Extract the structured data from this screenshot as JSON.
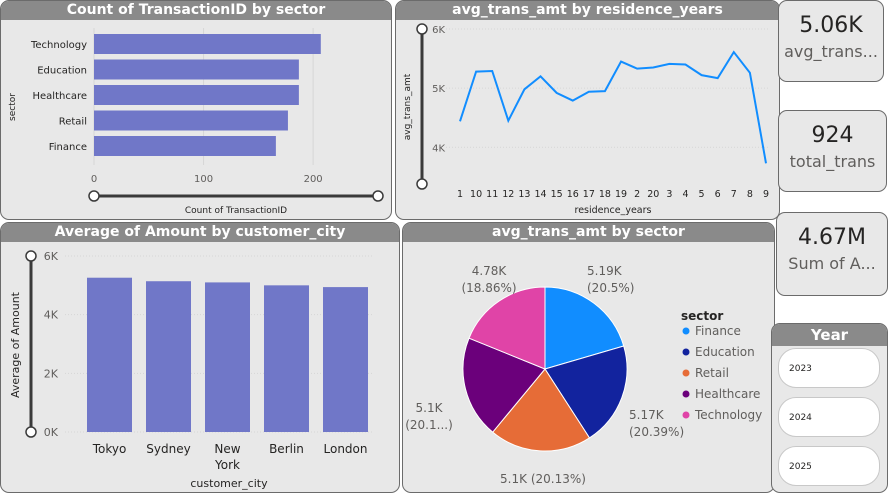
{
  "colors": {
    "bar": "#7077c8",
    "line": "#118dff",
    "finance": "#118dff",
    "education": "#12239e",
    "retail": "#e66c37",
    "healthcare": "#6b007b",
    "technology": "#e044a7"
  },
  "panels": {
    "sector_count": {
      "title": "Count of TransactionID by sector"
    },
    "residence": {
      "title": "avg_trans_amt by residence_years"
    },
    "city": {
      "title": "Average of Amount by customer_city"
    },
    "pie": {
      "title": "avg_trans_amt by sector"
    }
  },
  "kpis": [
    {
      "value": "5.06K",
      "label": "avg_trans..."
    },
    {
      "value": "924",
      "label": "total_trans"
    },
    {
      "value": "4.67M",
      "label": "Sum of A..."
    }
  ],
  "year_slicer": {
    "title": "Year",
    "items": [
      "2023",
      "2024",
      "2025"
    ]
  },
  "chart_data": [
    {
      "type": "bar",
      "orientation": "horizontal",
      "title": "Count of TransactionID by sector",
      "ylabel": "sector",
      "xlabel": "Count of TransactionID",
      "categories": [
        "Technology",
        "Education",
        "Healthcare",
        "Retail",
        "Finance"
      ],
      "values": [
        207,
        187,
        187,
        177,
        166
      ],
      "xticks": [
        "0",
        "100",
        "200"
      ],
      "xlim": [
        0,
        230
      ]
    },
    {
      "type": "line",
      "title": "avg_trans_amt by residence_years",
      "xlabel": "residence_years",
      "ylabel": "avg_trans_amt",
      "x": [
        "1",
        "10",
        "11",
        "12",
        "13",
        "14",
        "15",
        "16",
        "17",
        "18",
        "19",
        "2",
        "20",
        "3",
        "4",
        "5",
        "6",
        "7",
        "8",
        "9"
      ],
      "values": [
        4440,
        5280,
        5290,
        4450,
        4980,
        5200,
        4920,
        4790,
        4940,
        4950,
        5450,
        5330,
        5350,
        5410,
        5400,
        5220,
        5170,
        5610,
        5260,
        3730
      ],
      "yticks": [
        "4K",
        "5K",
        "6K"
      ],
      "ylim": [
        3650,
        6000
      ]
    },
    {
      "type": "bar",
      "title": "Average of Amount by customer_city",
      "xlabel": "customer_city",
      "ylabel": "Average of Amount",
      "categories": [
        "Tokyo",
        "Sydney",
        "New York",
        "Berlin",
        "London"
      ],
      "values": [
        5260,
        5140,
        5100,
        5000,
        4940
      ],
      "yticks": [
        "0K",
        "2K",
        "4K",
        "6K"
      ],
      "ylim": [
        0,
        6000
      ]
    },
    {
      "type": "pie",
      "title": "avg_trans_amt by sector",
      "legend_title": "sector",
      "legend": [
        "Finance",
        "Education",
        "Retail",
        "Healthcare",
        "Technology"
      ],
      "slices": [
        {
          "name": "Finance",
          "value": 5190,
          "label1": "5.19K",
          "label2": "(20.5%)"
        },
        {
          "name": "Education",
          "value": 5170,
          "label1": "5.17K",
          "label2": "(20.39%)"
        },
        {
          "name": "Retail",
          "value": 5100,
          "label1": "5.1K (20.13%)",
          "label2": ""
        },
        {
          "name": "Healthcare",
          "value": 5100,
          "label1": "5.1K",
          "label2": "(20.1...)"
        },
        {
          "name": "Technology",
          "value": 4780,
          "label1": "4.78K",
          "label2": "(18.86%)"
        }
      ]
    }
  ]
}
